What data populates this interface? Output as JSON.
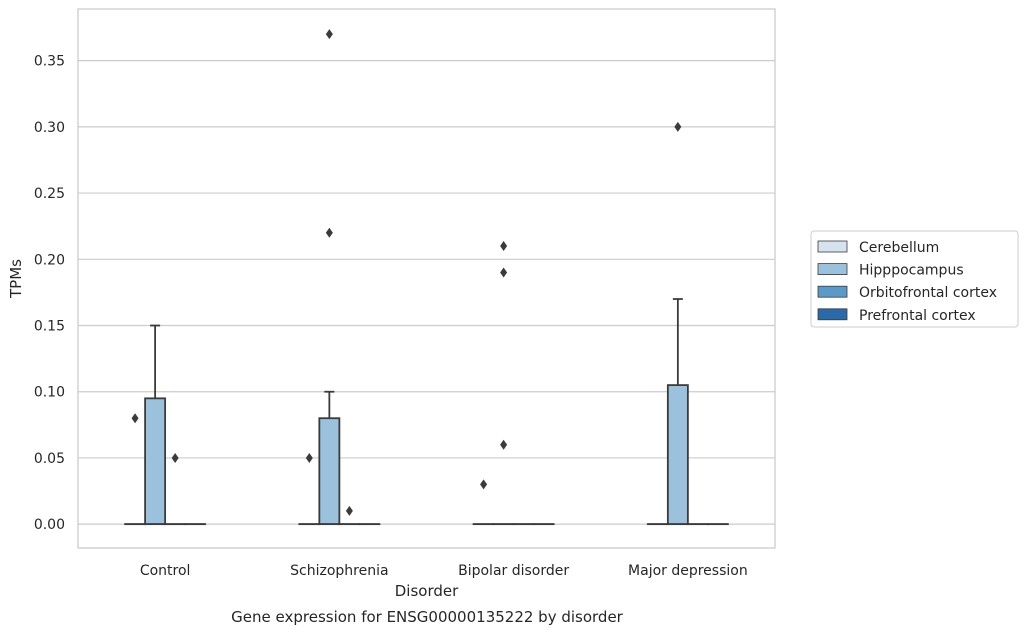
{
  "chart_data": {
    "type": "box",
    "title": "",
    "caption": "Gene expression for ENSG00000135222 by disorder",
    "xlabel": "Disorder",
    "ylabel": "TPMs",
    "ylim": [
      -0.018,
      0.389
    ],
    "yticks": [
      "0.00",
      "0.05",
      "0.10",
      "0.15",
      "0.20",
      "0.25",
      "0.30",
      "0.35"
    ],
    "grid": true,
    "legend_position": "right",
    "categories": [
      "Control",
      "Schizophrenia",
      "Bipolar disorder",
      "Major depression"
    ],
    "series": [
      {
        "name": "Cerebellum",
        "color": "#d6e2ef",
        "boxes": [
          {
            "q1": 0,
            "median": 0,
            "q3": 0,
            "whisker_low": 0,
            "whisker_high": 0,
            "outliers": []
          },
          {
            "q1": 0,
            "median": 0,
            "q3": 0,
            "whisker_low": 0,
            "whisker_high": 0,
            "outliers": [
              0.05
            ]
          },
          {
            "q1": 0,
            "median": 0,
            "q3": 0,
            "whisker_low": 0,
            "whisker_high": 0,
            "outliers": [
              0.03
            ]
          },
          {
            "q1": 0,
            "median": 0,
            "q3": 0,
            "whisker_low": 0,
            "whisker_high": 0,
            "outliers": []
          }
        ]
      },
      {
        "name": "Hipppocampus",
        "color": "#9bc1dc",
        "boxes": [
          {
            "q1": 0,
            "median": 0,
            "q3": 0.095,
            "whisker_low": 0,
            "whisker_high": 0.15,
            "outliers": []
          },
          {
            "q1": 0,
            "median": 0,
            "q3": 0.08,
            "whisker_low": 0,
            "whisker_high": 0.1,
            "outliers": [
              0.37,
              0.22
            ]
          },
          {
            "q1": 0,
            "median": 0,
            "q3": 0,
            "whisker_low": 0,
            "whisker_high": 0,
            "outliers": [
              0.21,
              0.19,
              0.06
            ]
          },
          {
            "q1": 0,
            "median": 0,
            "q3": 0.105,
            "whisker_low": 0,
            "whisker_high": 0.17,
            "outliers": [
              0.3
            ]
          }
        ]
      },
      {
        "name": "Orbitofrontal cortex",
        "color": "#5b9ac8",
        "boxes": [
          {
            "q1": 0,
            "median": 0,
            "q3": 0,
            "whisker_low": 0,
            "whisker_high": 0,
            "outliers": [
              0.05
            ]
          },
          {
            "q1": 0,
            "median": 0,
            "q3": 0,
            "whisker_low": 0,
            "whisker_high": 0,
            "outliers": [
              0.01
            ]
          },
          {
            "q1": 0,
            "median": 0,
            "q3": 0,
            "whisker_low": 0,
            "whisker_high": 0,
            "outliers": []
          },
          {
            "q1": 0,
            "median": 0,
            "q3": 0,
            "whisker_low": 0,
            "whisker_high": 0,
            "outliers": []
          }
        ]
      },
      {
        "name": "Prefrontal cortex",
        "color": "#2b6aa8",
        "boxes": [
          {
            "q1": 0,
            "median": 0,
            "q3": 0,
            "whisker_low": 0,
            "whisker_high": 0,
            "outliers": []
          },
          {
            "q1": 0,
            "median": 0,
            "q3": 0,
            "whisker_low": 0,
            "whisker_high": 0,
            "outliers": []
          },
          {
            "q1": 0,
            "median": 0,
            "q3": 0,
            "whisker_low": 0,
            "whisker_high": 0,
            "outliers": []
          },
          {
            "q1": 0,
            "median": 0,
            "q3": 0,
            "whisker_low": 0,
            "whisker_high": 0,
            "outliers": []
          }
        ]
      }
    ],
    "special_outliers": [
      {
        "category_index": 0,
        "series_index": 0,
        "value": 0.08,
        "note_series": "Cerebellum"
      }
    ]
  }
}
